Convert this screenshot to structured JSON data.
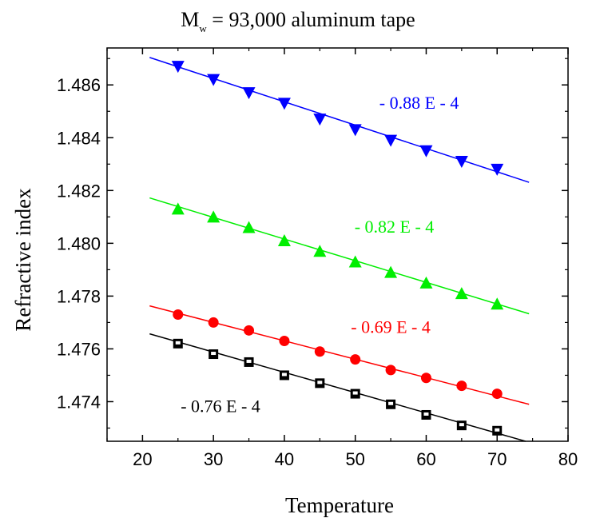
{
  "chart_data": {
    "type": "scatter",
    "title_main": "M",
    "title_sub": "w",
    "title_rest": " = 93,000  aluminum tape",
    "xlabel": "Temperature",
    "ylabel": "Refractive index",
    "xlim": [
      15,
      80
    ],
    "ylim": [
      1.4725,
      1.4874
    ],
    "xticks": [
      20,
      30,
      40,
      50,
      60,
      70,
      80
    ],
    "yticks": [
      1.474,
      1.476,
      1.478,
      1.48,
      1.482,
      1.484,
      1.486
    ],
    "ytick_labels": [
      "1.474",
      "1.476",
      "1.478",
      "1.480",
      "1.482",
      "1.484",
      "1.486"
    ],
    "xtick_labels": [
      "20",
      "30",
      "40",
      "50",
      "60",
      "70",
      "80"
    ],
    "grid": false,
    "series": [
      {
        "color": "#0000ff",
        "marker": "triangle-down",
        "x": [
          25,
          30,
          35,
          40,
          45,
          50,
          55,
          60,
          65,
          70
        ],
        "y": [
          1.4867,
          1.4862,
          1.4857,
          1.4853,
          1.4847,
          1.4843,
          1.4839,
          1.4835,
          1.4831,
          1.4828
        ],
        "fit": {
          "x": [
            21,
            74.5
          ],
          "y": [
            1.48704,
            1.48231
          ]
        },
        "annotation": {
          "text": "- 0.88 E - 4",
          "x": 59,
          "y": 1.4851
        }
      },
      {
        "color": "#00ee00",
        "marker": "triangle-up",
        "x": [
          25,
          30,
          35,
          40,
          45,
          50,
          55,
          60,
          65,
          70
        ],
        "y": [
          1.4813,
          1.481,
          1.4806,
          1.4801,
          1.4797,
          1.4793,
          1.4789,
          1.4785,
          1.4781,
          1.4777
        ],
        "fit": {
          "x": [
            21,
            74.5
          ],
          "y": [
            1.48172,
            1.47733
          ]
        },
        "annotation": {
          "text": "- 0.82 E - 4",
          "x": 55.5,
          "y": 1.4804
        }
      },
      {
        "color": "#ff0000",
        "marker": "circle",
        "x": [
          25,
          30,
          35,
          40,
          45,
          50,
          55,
          60,
          65,
          70
        ],
        "y": [
          1.4773,
          1.477,
          1.4767,
          1.4763,
          1.4759,
          1.4756,
          1.4752,
          1.4749,
          1.4746,
          1.4743
        ],
        "fit": {
          "x": [
            21,
            74.5
          ],
          "y": [
            1.47763,
            1.4739
          ]
        },
        "annotation": {
          "text": "- 0.69 E - 4",
          "x": 55,
          "y": 1.4766
        }
      },
      {
        "color": "#000000",
        "marker": "square",
        "x": [
          25,
          30,
          35,
          40,
          45,
          50,
          55,
          60,
          65,
          70
        ],
        "y": [
          1.4762,
          1.4758,
          1.4755,
          1.475,
          1.4747,
          1.4743,
          1.4739,
          1.4735,
          1.4731,
          1.4729
        ],
        "fit": {
          "x": [
            21,
            74
          ],
          "y": [
            1.47657,
            1.4725
          ]
        },
        "annotation": {
          "text": "- 0.76 E - 4",
          "x": 31,
          "y": 1.4736
        }
      }
    ]
  }
}
